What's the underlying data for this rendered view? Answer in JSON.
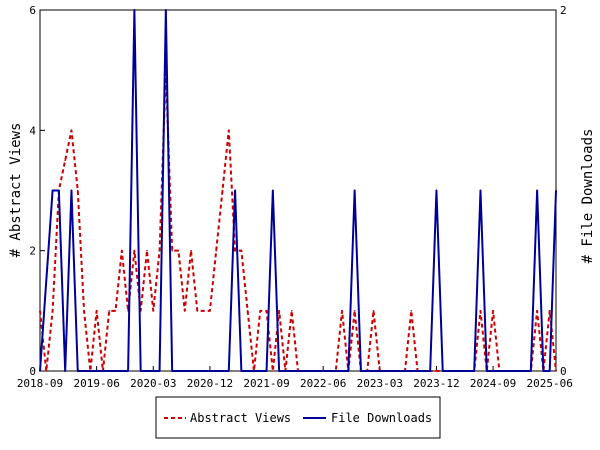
{
  "chart_data": {
    "type": "line",
    "y_left_label": "# Abstract Views",
    "y_right_label": "# File Downloads",
    "y_left_lim": [
      0,
      6
    ],
    "y_right_lim": [
      0,
      2
    ],
    "y_left_ticks": [
      "0",
      "2",
      "4",
      "6"
    ],
    "y_right_ticks": [
      "0",
      "2"
    ],
    "x_tick_labels": [
      "2018-09",
      "2019-06",
      "2020-03",
      "2020-12",
      "2021-09",
      "2022-06",
      "2023-03",
      "2023-12",
      "2024-09",
      "2025-06"
    ],
    "x_lim": [
      "2018-09",
      "2025-07"
    ],
    "legend": {
      "placement": "bottom",
      "entries": [
        "Abstract Views",
        "File Downloads"
      ]
    },
    "colors": {
      "abstract_views": "#cc0000",
      "file_downloads": "#000099"
    },
    "series": [
      {
        "name": "Abstract Views",
        "axis": "left",
        "style": "dashed",
        "points": [
          [
            "2018-09",
            1
          ],
          [
            "2018-10",
            0
          ],
          [
            "2018-11",
            1
          ],
          [
            "2018-12",
            3
          ],
          [
            "2019-01",
            3.5
          ],
          [
            "2019-02",
            4
          ],
          [
            "2019-03",
            3
          ],
          [
            "2019-04",
            1
          ],
          [
            "2019-05",
            0
          ],
          [
            "2019-06",
            1
          ],
          [
            "2019-07",
            0
          ],
          [
            "2019-08",
            1
          ],
          [
            "2019-09",
            1
          ],
          [
            "2019-10",
            2
          ],
          [
            "2019-11",
            1
          ],
          [
            "2019-12",
            2
          ],
          [
            "2020-01",
            1
          ],
          [
            "2020-02",
            2
          ],
          [
            "2020-03",
            1
          ],
          [
            "2020-04",
            2
          ],
          [
            "2020-05",
            5
          ],
          [
            "2020-06",
            2
          ],
          [
            "2020-07",
            2
          ],
          [
            "2020-08",
            1
          ],
          [
            "2020-09",
            2
          ],
          [
            "2020-10",
            1
          ],
          [
            "2020-11",
            1
          ],
          [
            "2020-12",
            1
          ],
          [
            "2021-01",
            2
          ],
          [
            "2021-02",
            3
          ],
          [
            "2021-03",
            4
          ],
          [
            "2021-04",
            2
          ],
          [
            "2021-05",
            2
          ],
          [
            "2021-06",
            1
          ],
          [
            "2021-07",
            0
          ],
          [
            "2021-08",
            1
          ],
          [
            "2021-09",
            1
          ],
          [
            "2021-10",
            0
          ],
          [
            "2021-11",
            1
          ],
          [
            "2021-12",
            0
          ],
          [
            "2022-01",
            1
          ],
          [
            "2022-02",
            0
          ],
          [
            "2022-03",
            0
          ],
          [
            "2022-04",
            0
          ],
          [
            "2022-05",
            0
          ],
          [
            "2022-06",
            0
          ],
          [
            "2022-07",
            0
          ],
          [
            "2022-08",
            0
          ],
          [
            "2022-09",
            1
          ],
          [
            "2022-10",
            0
          ],
          [
            "2022-11",
            1
          ],
          [
            "2022-12",
            0
          ],
          [
            "2023-01",
            0
          ],
          [
            "2023-02",
            1
          ],
          [
            "2023-03",
            0
          ],
          [
            "2023-04",
            0
          ],
          [
            "2023-05",
            0
          ],
          [
            "2023-06",
            0
          ],
          [
            "2023-07",
            0
          ],
          [
            "2023-08",
            1
          ],
          [
            "2023-09",
            0
          ],
          [
            "2023-10",
            0
          ],
          [
            "2023-11",
            0
          ],
          [
            "2023-12",
            0
          ],
          [
            "2024-01",
            0
          ],
          [
            "2024-02",
            0
          ],
          [
            "2024-03",
            0
          ],
          [
            "2024-04",
            0
          ],
          [
            "2024-05",
            0
          ],
          [
            "2024-06",
            0
          ],
          [
            "2024-07",
            1
          ],
          [
            "2024-08",
            0
          ],
          [
            "2024-09",
            1
          ],
          [
            "2024-10",
            0
          ],
          [
            "2024-11",
            0
          ],
          [
            "2024-12",
            0
          ],
          [
            "2025-01",
            0
          ],
          [
            "2025-02",
            0
          ],
          [
            "2025-03",
            0
          ],
          [
            "2025-04",
            1
          ],
          [
            "2025-05",
            0
          ],
          [
            "2025-06",
            1
          ],
          [
            "2025-07",
            0
          ]
        ]
      },
      {
        "name": "File Downloads",
        "axis": "right",
        "style": "solid",
        "points": [
          [
            "2018-09",
            0
          ],
          [
            "2018-10",
            0.5
          ],
          [
            "2018-11",
            1
          ],
          [
            "2018-12",
            1
          ],
          [
            "2019-01",
            0
          ],
          [
            "2019-02",
            1
          ],
          [
            "2019-03",
            0
          ],
          [
            "2019-04",
            0
          ],
          [
            "2019-05",
            0
          ],
          [
            "2019-06",
            0
          ],
          [
            "2019-07",
            0
          ],
          [
            "2019-08",
            0
          ],
          [
            "2019-09",
            0
          ],
          [
            "2019-10",
            0
          ],
          [
            "2019-11",
            0
          ],
          [
            "2019-12",
            2
          ],
          [
            "2020-01",
            0
          ],
          [
            "2020-02",
            0
          ],
          [
            "2020-03",
            0
          ],
          [
            "2020-04",
            0
          ],
          [
            "2020-05",
            2
          ],
          [
            "2020-06",
            0
          ],
          [
            "2020-07",
            0
          ],
          [
            "2020-08",
            0
          ],
          [
            "2020-09",
            0
          ],
          [
            "2020-10",
            0
          ],
          [
            "2020-11",
            0
          ],
          [
            "2020-12",
            0
          ],
          [
            "2021-01",
            0
          ],
          [
            "2021-02",
            0
          ],
          [
            "2021-03",
            0
          ],
          [
            "2021-04",
            1
          ],
          [
            "2021-05",
            0
          ],
          [
            "2021-06",
            0
          ],
          [
            "2021-07",
            0
          ],
          [
            "2021-08",
            0
          ],
          [
            "2021-09",
            0
          ],
          [
            "2021-10",
            1
          ],
          [
            "2021-11",
            0
          ],
          [
            "2021-12",
            0
          ],
          [
            "2022-01",
            0
          ],
          [
            "2022-02",
            0
          ],
          [
            "2022-03",
            0
          ],
          [
            "2022-04",
            0
          ],
          [
            "2022-05",
            0
          ],
          [
            "2022-06",
            0
          ],
          [
            "2022-07",
            0
          ],
          [
            "2022-08",
            0
          ],
          [
            "2022-09",
            0
          ],
          [
            "2022-10",
            0
          ],
          [
            "2022-11",
            1
          ],
          [
            "2022-12",
            0
          ],
          [
            "2023-01",
            0
          ],
          [
            "2023-02",
            0
          ],
          [
            "2023-03",
            0
          ],
          [
            "2023-04",
            0
          ],
          [
            "2023-05",
            0
          ],
          [
            "2023-06",
            0
          ],
          [
            "2023-07",
            0
          ],
          [
            "2023-08",
            0
          ],
          [
            "2023-09",
            0
          ],
          [
            "2023-10",
            0
          ],
          [
            "2023-11",
            0
          ],
          [
            "2023-12",
            1
          ],
          [
            "2024-01",
            0
          ],
          [
            "2024-02",
            0
          ],
          [
            "2024-03",
            0
          ],
          [
            "2024-04",
            0
          ],
          [
            "2024-05",
            0
          ],
          [
            "2024-06",
            0
          ],
          [
            "2024-07",
            1
          ],
          [
            "2024-08",
            0
          ],
          [
            "2024-09",
            0
          ],
          [
            "2024-10",
            0
          ],
          [
            "2024-11",
            0
          ],
          [
            "2024-12",
            0
          ],
          [
            "2025-01",
            0
          ],
          [
            "2025-02",
            0
          ],
          [
            "2025-03",
            0
          ],
          [
            "2025-04",
            1
          ],
          [
            "2025-05",
            0
          ],
          [
            "2025-06",
            0
          ],
          [
            "2025-07",
            1
          ]
        ]
      }
    ]
  }
}
